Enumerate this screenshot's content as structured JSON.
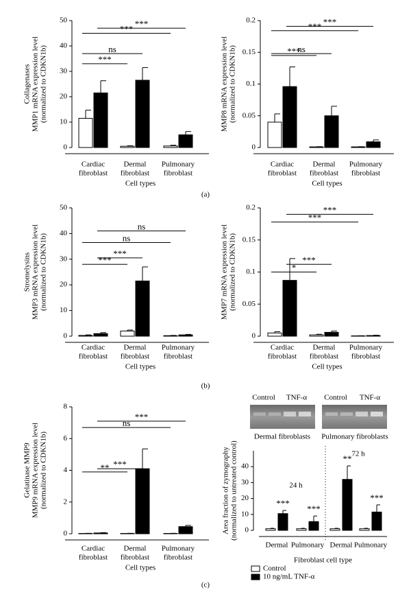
{
  "chart_data": [
    {
      "type": "bar",
      "ylabel": [
        "Collagenases",
        "MMP1 mRNA expression level",
        "(normalized to CDKN1b)"
      ],
      "categories": [
        [
          "Cardiac",
          "fibroblast"
        ],
        [
          "Dermal",
          "fibroblast"
        ],
        [
          "Pulmonary",
          "fibroblast"
        ]
      ],
      "xlabel": "Cell types",
      "ylim": [
        0,
        50
      ],
      "yticks": [
        0,
        10,
        20,
        30,
        40,
        50
      ],
      "series": [
        {
          "color": "#ffffff",
          "values": [
            11.5,
            0.5,
            0.6
          ],
          "errors": [
            3.2,
            0.2,
            0.3
          ]
        },
        {
          "color": "#000000",
          "values": [
            21.5,
            26.5,
            5
          ],
          "errors": [
            4.8,
            5,
            1.3
          ]
        }
      ],
      "annotations": [
        {
          "text": "***",
          "y": 33
        },
        {
          "text": "ns",
          "y": 37
        },
        {
          "text": "***",
          "y": 45
        },
        {
          "text": "***",
          "y": 47
        }
      ]
    },
    {
      "type": "bar",
      "ylabel": [
        "MMP8 mRNA expression level",
        "(normalized to CDKN1b)"
      ],
      "categories": [
        [
          "Cardiac",
          "fibroblast"
        ],
        [
          "Dermal",
          "fibroblast"
        ],
        [
          "Pulmonary",
          "fibroblast"
        ]
      ],
      "xlabel": "Cell types",
      "ylim": [
        0,
        0.2
      ],
      "yticks": [
        0,
        0.05,
        0.1,
        0.15,
        0.2
      ],
      "series": [
        {
          "color": "#ffffff",
          "values": [
            0.04,
            0.001,
            0.001
          ],
          "errors": [
            0.013,
            0.0003,
            0.0003
          ]
        },
        {
          "color": "#000000",
          "values": [
            0.096,
            0.05,
            0.009
          ],
          "errors": [
            0.031,
            0.015,
            0.003
          ]
        }
      ],
      "annotations": [
        {
          "text": "***",
          "y": 0.145
        },
        {
          "text": "ns",
          "y": 0.148
        },
        {
          "text": "***",
          "y": 0.184
        },
        {
          "text": "***",
          "y": 0.191
        }
      ]
    },
    {
      "type": "bar",
      "ylabel": [
        "Stromelysins",
        "MMP3 mRNA expression level",
        "(normalized to CDKN1b)"
      ],
      "categories": [
        [
          "Cardiac",
          "fibroblast"
        ],
        [
          "Dermal",
          "fibroblast"
        ],
        [
          "Pulmonary",
          "fibroblast"
        ]
      ],
      "xlabel": "Cell types",
      "ylim": [
        0,
        50
      ],
      "yticks": [
        0,
        10,
        20,
        30,
        40,
        50
      ],
      "series": [
        {
          "color": "#ffffff",
          "values": [
            0.3,
            2,
            0.2
          ],
          "errors": [
            0.2,
            0.4,
            0.1
          ]
        },
        {
          "color": "#000000",
          "values": [
            1,
            21.5,
            0.5
          ],
          "errors": [
            0.4,
            5.5,
            0.2
          ]
        }
      ],
      "annotations": [
        {
          "text": "***",
          "y": 28
        },
        {
          "text": "***",
          "y": 30.5
        },
        {
          "text": "ns",
          "y": 36.5
        },
        {
          "text": "ns",
          "y": 41
        }
      ]
    },
    {
      "type": "bar",
      "ylabel": [
        "MMP7 mRNA expression level",
        "(normalized to CDKN1b)"
      ],
      "categories": [
        [
          "Cardiac",
          "fibroblast"
        ],
        [
          "Dermal",
          "fibroblast"
        ],
        [
          "Pulmonary",
          "fibroblast"
        ]
      ],
      "xlabel": "Cell types",
      "ylim": [
        0,
        0.2
      ],
      "yticks": [
        0,
        0.05,
        0.1,
        0.15,
        0.2
      ],
      "series": [
        {
          "color": "#ffffff",
          "values": [
            0.005,
            0.002,
            0.0005
          ],
          "errors": [
            0.002,
            0.001,
            0.0002
          ]
        },
        {
          "color": "#000000",
          "values": [
            0.087,
            0.006,
            0.001
          ],
          "errors": [
            0.034,
            0.002,
            0.0005
          ]
        }
      ],
      "annotations": [
        {
          "text": "*",
          "y": 0.1
        },
        {
          "text": "***",
          "y": 0.112
        },
        {
          "text": "***",
          "y": 0.178
        },
        {
          "text": "***",
          "y": 0.19
        }
      ]
    },
    {
      "type": "bar",
      "ylabel": [
        "Gelatinase MMP9",
        "MMP9 mRNA expression level",
        "(normalized to CDKN1b)"
      ],
      "categories": [
        [
          "Cardiac",
          "fibroblast"
        ],
        [
          "Dermal",
          "fibroblast"
        ],
        [
          "Pulmonary",
          "fibroblast"
        ]
      ],
      "xlabel": "Cell types",
      "ylim": [
        0,
        8
      ],
      "yticks": [
        0,
        2,
        4,
        6,
        8
      ],
      "series": [
        {
          "color": "#ffffff",
          "values": [
            0.02,
            0.02,
            0.02
          ],
          "errors": [
            0.01,
            0.01,
            0.01
          ]
        },
        {
          "color": "#000000",
          "values": [
            0.05,
            4.1,
            0.45
          ],
          "errors": [
            0.02,
            1.25,
            0.08
          ]
        }
      ],
      "annotations": [
        {
          "text": "**",
          "y": 3.9
        },
        {
          "text": "***",
          "y": 4.1
        },
        {
          "text": "ns",
          "y": 6.7
        },
        {
          "text": "***",
          "y": 7.1
        }
      ]
    },
    {
      "type": "bar",
      "ylabel": [
        "Area fraction of zymography",
        "(normalized to untreated control)"
      ],
      "categories": [
        "Dermal",
        "Pulmonary",
        "Dermal",
        "Pulmonary"
      ],
      "xlabel": "Fibroblast cell type",
      "groups": [
        "24 h",
        "72 h"
      ],
      "ylim": [
        0,
        50
      ],
      "yticks": [
        0,
        10,
        20,
        30,
        40
      ],
      "series": [
        {
          "name": "Control",
          "color": "#ffffff",
          "values": [
            1,
            1,
            1,
            1
          ],
          "errors": [
            0.3,
            0.3,
            0.3,
            0.3
          ]
        },
        {
          "name": "10 ng/mL TNF-α",
          "color": "#000000",
          "values": [
            10.5,
            5.5,
            32,
            11.5
          ],
          "errors": [
            2,
            3.5,
            8.5,
            4.5
          ]
        }
      ],
      "significance": [
        "***",
        "***",
        "**",
        "***"
      ]
    }
  ],
  "gel_labels": {
    "lanes": [
      "Control",
      "TNF-α",
      "Control",
      "TNF-α"
    ],
    "cells": [
      "Dermal fibroblasts",
      "Pulmonary fibroblasts"
    ]
  },
  "panel_labels": [
    "(a)",
    "(b)",
    "(c)"
  ]
}
